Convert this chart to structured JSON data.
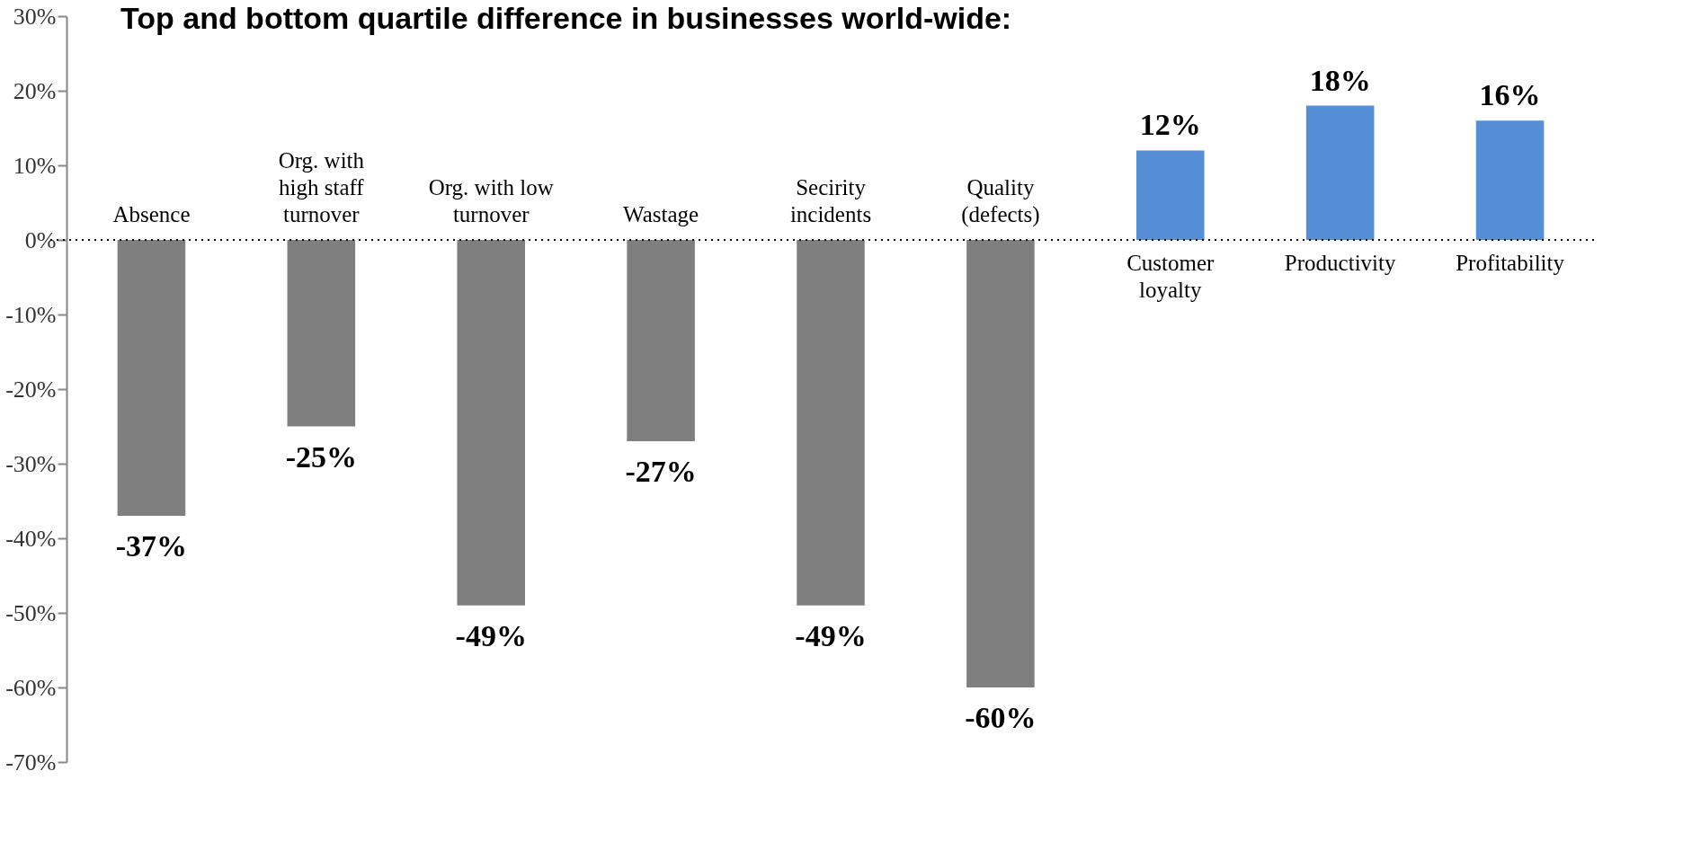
{
  "chart_data": {
    "type": "bar",
    "title": "Top and bottom quartile difference in businesses world-wide:",
    "categories": [
      "Absence",
      "Org. with high staff turnover",
      "Org. with low turnover",
      "Wastage",
      "Secirity incidents",
      "Quality (defects)",
      "Customer loyalty",
      "Productivity",
      "Profitability"
    ],
    "values": [
      -37,
      -25,
      -49,
      -27,
      -49,
      -60,
      12,
      18,
      16
    ],
    "colors": [
      "#7f7f7f",
      "#7f7f7f",
      "#7f7f7f",
      "#7f7f7f",
      "#7f7f7f",
      "#7f7f7f",
      "#558ed5",
      "#558ed5",
      "#558ed5"
    ],
    "value_labels": [
      "-37%",
      "-25%",
      "-49%",
      "-27%",
      "-49%",
      "-60%",
      "12%",
      "18%",
      "16%"
    ],
    "ylim": [
      -70,
      30
    ],
    "yticks": [
      {
        "value": -70,
        "label": "-70%"
      },
      {
        "value": -60,
        "label": "-60%"
      },
      {
        "value": -50,
        "label": "-50%"
      },
      {
        "value": -40,
        "label": "-40%"
      },
      {
        "value": -30,
        "label": "-30%"
      },
      {
        "value": -20,
        "label": "-20%"
      },
      {
        "value": -10,
        "label": "-10%"
      },
      {
        "value": 0,
        "label": "0%"
      },
      {
        "value": 10,
        "label": "10%"
      },
      {
        "value": 20,
        "label": "20%"
      },
      {
        "value": 30,
        "label": "30%"
      }
    ]
  }
}
